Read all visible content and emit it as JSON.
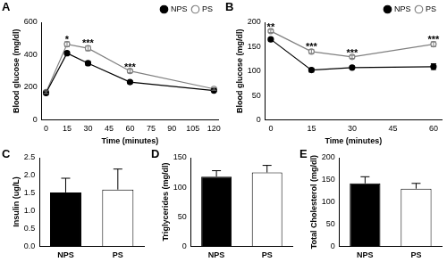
{
  "chart_data": [
    {
      "type": "line",
      "title": "A",
      "x_label": "Time (minutes)",
      "y_label": "Blood glucose (mg/dl)",
      "x": [
        0,
        15,
        30,
        60,
        120
      ],
      "series": [
        {
          "name": "NPS",
          "color": "#000000",
          "marker": "circle",
          "values": [
            165,
            410,
            348,
            232,
            180
          ],
          "errors": [
            8,
            10,
            12,
            8,
            5
          ]
        },
        {
          "name": "PS",
          "color": "#808080",
          "marker": "open circle",
          "values": [
            170,
            465,
            440,
            300,
            190
          ],
          "errors": [
            8,
            15,
            15,
            10,
            8
          ]
        }
      ],
      "xlim": [
        -3,
        123
      ],
      "xticks": [
        0,
        15,
        30,
        45,
        60,
        75,
        90,
        105,
        120
      ],
      "ylim": [
        0,
        600
      ],
      "yticks": [
        0,
        200,
        400,
        600
      ],
      "legend": "top right",
      "grid": false,
      "annotations": [
        {
          "x": 15,
          "y": 492,
          "text": "*"
        },
        {
          "x": 30,
          "y": 468,
          "text": "***"
        },
        {
          "x": 60,
          "y": 322,
          "text": "***"
        }
      ]
    },
    {
      "type": "line",
      "title": "B",
      "x_label": "Time (minutes)",
      "y_label": "Blood glucose (mg/dl)",
      "x": [
        0,
        15,
        30,
        60
      ],
      "series": [
        {
          "name": "NPS",
          "color": "#000000",
          "marker": "circle",
          "values": [
            165,
            102,
            107,
            109
          ],
          "errors": [
            3,
            4,
            3,
            6
          ]
        },
        {
          "name": "PS",
          "color": "#808080",
          "marker": "open circle",
          "values": [
            182,
            140,
            129,
            155
          ],
          "errors": [
            3,
            4,
            3,
            5
          ]
        }
      ],
      "xlim": [
        -2,
        63
      ],
      "xticks": [
        0,
        15,
        30,
        45,
        60
      ],
      "ylim": [
        0,
        200
      ],
      "yticks": [
        0,
        50,
        100,
        150,
        200
      ],
      "legend": "top right",
      "grid": false,
      "annotations": [
        {
          "x": 0,
          "y": 190,
          "text": "**"
        },
        {
          "x": 15,
          "y": 148,
          "text": "***"
        },
        {
          "x": 30,
          "y": 136,
          "text": "***"
        },
        {
          "x": 60,
          "y": 164,
          "text": "***"
        }
      ]
    },
    {
      "type": "bar",
      "title": "C",
      "y_label": "Insulin (ug/L)",
      "categories": [
        "NPS",
        "PS"
      ],
      "values": [
        1.52,
        1.6
      ],
      "errors": [
        0.4,
        0.58
      ],
      "colors": [
        "#000000",
        "#ffffff"
      ],
      "ylim": [
        0,
        2.5
      ],
      "yticks": [
        {
          "value": 0,
          "label": "0.0"
        },
        {
          "value": 0.5,
          "label": "0.5"
        },
        {
          "value": 1,
          "label": "1.0"
        },
        {
          "value": 1.5,
          "label": "1.5"
        },
        {
          "value": 2,
          "label": "2.0"
        },
        {
          "value": 2.5,
          "label": "2.5"
        }
      ],
      "grid": false
    },
    {
      "type": "bar",
      "title": "D",
      "y_label": "Triglycerides (mg/dl)",
      "categories": [
        "NPS",
        "PS"
      ],
      "values": [
        118,
        125
      ],
      "errors": [
        10,
        12
      ],
      "colors": [
        "#000000",
        "#ffffff"
      ],
      "ylim": [
        0,
        150
      ],
      "yticks": [
        0,
        50,
        100,
        150
      ],
      "grid": false
    },
    {
      "type": "bar",
      "title": "E",
      "y_label": "Total Cholesterol (mg/dl)",
      "categories": [
        "NPS",
        "PS"
      ],
      "values": [
        142,
        130
      ],
      "errors": [
        15,
        12
      ],
      "colors": [
        "#000000",
        "#ffffff"
      ],
      "ylim": [
        0,
        200
      ],
      "yticks": [
        0,
        50,
        100,
        150,
        200
      ],
      "grid": false
    }
  ]
}
